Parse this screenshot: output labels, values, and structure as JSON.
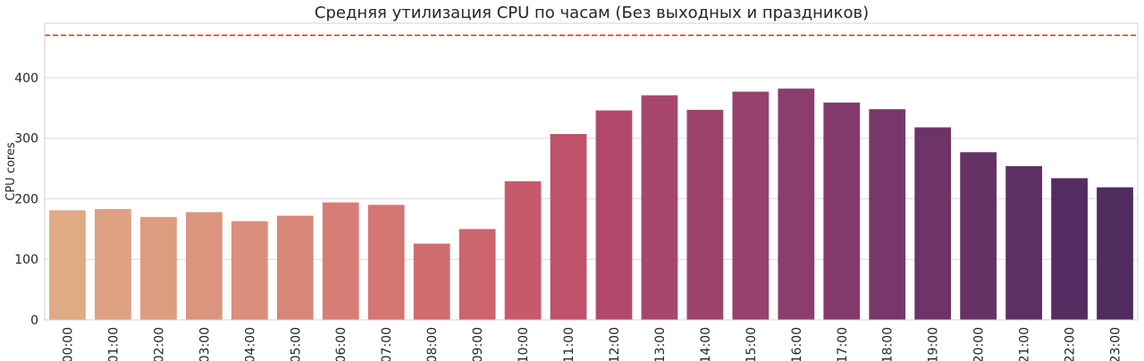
{
  "chart_data": {
    "type": "bar",
    "title": "Средняя утилизация CPU по часам (Без выходных и праздников)",
    "xlabel": "",
    "ylabel": "CPU cores",
    "ylim": [
      0,
      490
    ],
    "yticks": [
      "0",
      "100",
      "200",
      "300",
      "400"
    ],
    "grid": true,
    "reference_line": {
      "value": 470,
      "color": "#e8201f",
      "style": "dashed"
    },
    "categories": [
      "00:00",
      "01:00",
      "02:00",
      "03:00",
      "04:00",
      "05:00",
      "06:00",
      "07:00",
      "08:00",
      "09:00",
      "10:00",
      "11:00",
      "12:00",
      "13:00",
      "14:00",
      "15:00",
      "16:00",
      "17:00",
      "18:00",
      "19:00",
      "20:00",
      "21:00",
      "22:00",
      "23:00"
    ],
    "values": [
      181,
      183,
      170,
      178,
      163,
      172,
      194,
      190,
      126,
      150,
      229,
      307,
      346,
      371,
      347,
      377,
      382,
      359,
      348,
      318,
      277,
      254,
      234,
      219
    ],
    "colors": [
      "#e0aa85",
      "#dea183",
      "#dd9b80",
      "#db957e",
      "#da8e7b",
      "#d88678",
      "#d67e75",
      "#d47672",
      "#d06d6f",
      "#cc646d",
      "#c65a6b",
      "#bf516b",
      "#b2496b",
      "#a8476c",
      "#9e446c",
      "#96426c",
      "#8b3d6c",
      "#813a6b",
      "#78376a",
      "#6e3468",
      "#663266",
      "#5d2f63",
      "#552c61",
      "#4f2b5e"
    ]
  }
}
